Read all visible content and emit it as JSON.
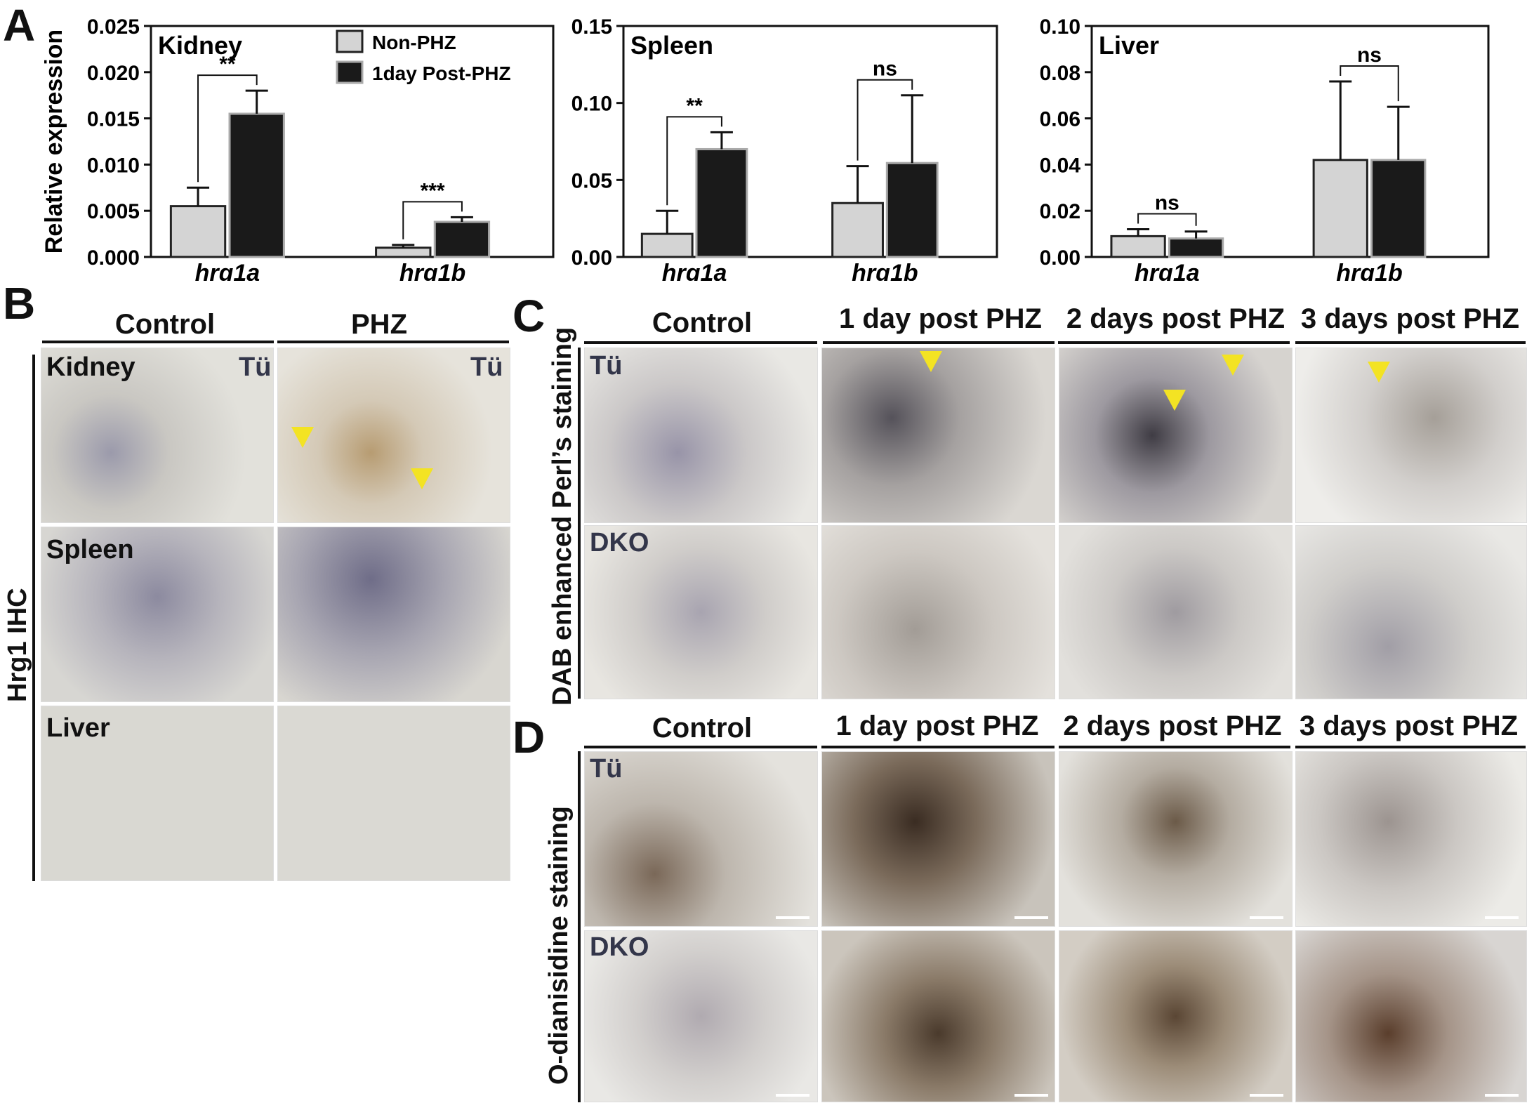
{
  "panels": {
    "A": "A",
    "B": "B",
    "C": "C",
    "D": "D"
  },
  "chart_data": [
    {
      "type": "bar",
      "title": "Kidney",
      "ylabel": "Relative expression",
      "ylim": [
        0,
        0.025
      ],
      "yticks": [
        "0.000",
        "0.005",
        "0.010",
        "0.015",
        "0.020",
        "0.025"
      ],
      "categories": [
        "hrg1a",
        "hrg1b"
      ],
      "series": [
        {
          "name": "Non-PHZ",
          "values": [
            0.0055,
            0.001
          ],
          "errors": [
            0.002,
            0.0003
          ]
        },
        {
          "name": "1day Post-PHZ",
          "values": [
            0.0155,
            0.0038
          ],
          "errors": [
            0.0025,
            0.0005
          ]
        }
      ],
      "significance": [
        "**",
        "***"
      ]
    },
    {
      "type": "bar",
      "title": "Spleen",
      "ylabel": "",
      "ylim": [
        0,
        0.15
      ],
      "yticks": [
        "0.00",
        "0.05",
        "0.10",
        "0.15"
      ],
      "categories": [
        "hrg1a",
        "hrg1b"
      ],
      "series": [
        {
          "name": "Non-PHZ",
          "values": [
            0.015,
            0.035
          ],
          "errors": [
            0.015,
            0.024
          ]
        },
        {
          "name": "1day Post-PHZ",
          "values": [
            0.07,
            0.061
          ],
          "errors": [
            0.011,
            0.044
          ]
        }
      ],
      "significance": [
        "**",
        "ns"
      ]
    },
    {
      "type": "bar",
      "title": "Liver",
      "ylabel": "",
      "ylim": [
        0,
        0.1
      ],
      "yticks": [
        "0.00",
        "0.02",
        "0.04",
        "0.06",
        "0.08",
        "0.10"
      ],
      "categories": [
        "hrg1a",
        "hrg1b"
      ],
      "series": [
        {
          "name": "Non-PHZ",
          "values": [
            0.009,
            0.042
          ],
          "errors": [
            0.003,
            0.034
          ]
        },
        {
          "name": "1day Post-PHZ",
          "values": [
            0.008,
            0.042
          ],
          "errors": [
            0.003,
            0.023
          ]
        }
      ],
      "significance": [
        "ns",
        "ns"
      ]
    }
  ],
  "legend": [
    "Non-PHZ",
    "1day Post-PHZ"
  ],
  "colors": {
    "non_phz": "#d4d4d4",
    "post_phz": "#1a1a1a",
    "arrow": "#f3e323"
  },
  "panelB": {
    "col_headers": [
      "Control",
      "PHZ"
    ],
    "row_labels": [
      "Kidney",
      "Spleen",
      "Liver"
    ],
    "side_label": "Hrg1 IHC",
    "genotype": "Tü"
  },
  "panelC": {
    "col_headers": [
      "Control",
      "1 day post PHZ",
      "2 days post PHZ",
      "3 days post PHZ"
    ],
    "row_labels": [
      "Tü",
      "DKO"
    ],
    "side_label": "DAB enhanced Perl’s staining"
  },
  "panelD": {
    "col_headers": [
      "Control",
      "1 day post PHZ",
      "2 days post PHZ",
      "3 days post PHZ"
    ],
    "row_labels": [
      "Tü",
      "DKO"
    ],
    "side_label": "O-dianisidine staining"
  }
}
